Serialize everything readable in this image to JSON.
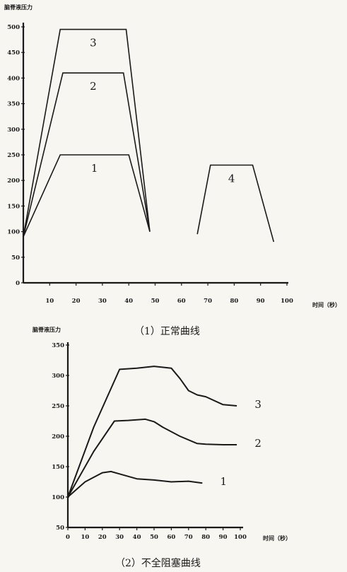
{
  "chart_data": [
    {
      "type": "line",
      "caption": "（1）正常曲线",
      "ylabel": "脑脊液压力",
      "xlabel": "时间（秒）",
      "ylim": [
        0,
        500
      ],
      "xlim": [
        0,
        100
      ],
      "yticks": [
        0,
        50,
        100,
        150,
        200,
        250,
        300,
        350,
        400,
        450,
        500
      ],
      "xticks": [
        10,
        20,
        30,
        40,
        50,
        60,
        70,
        80,
        90,
        100
      ],
      "series": [
        {
          "name": "1",
          "x": [
            0,
            14,
            40,
            48
          ],
          "y": [
            90,
            250,
            250,
            100
          ]
        },
        {
          "name": "2",
          "x": [
            0,
            15,
            38,
            48
          ],
          "y": [
            90,
            410,
            410,
            100
          ]
        },
        {
          "name": "3",
          "x": [
            0,
            14,
            39,
            48
          ],
          "y": [
            90,
            495,
            495,
            100
          ]
        },
        {
          "name": "4",
          "x": [
            66,
            71,
            87,
            95
          ],
          "y": [
            95,
            230,
            230,
            80
          ]
        }
      ]
    },
    {
      "type": "line",
      "caption": "（2）不全阻塞曲线",
      "ylabel": "脑脊液压力",
      "xlabel": "时间（秒）",
      "ylim": [
        50,
        350
      ],
      "xlim": [
        0,
        100
      ],
      "yticks": [
        50,
        100,
        150,
        200,
        250,
        300,
        350
      ],
      "xticks": [
        0,
        10,
        20,
        30,
        40,
        50,
        60,
        70,
        80,
        90,
        100
      ],
      "series": [
        {
          "name": "1",
          "x": [
            0,
            10,
            20,
            25,
            30,
            40,
            50,
            60,
            70,
            78
          ],
          "y": [
            100,
            125,
            140,
            142,
            138,
            130,
            128,
            125,
            126,
            123
          ]
        },
        {
          "name": "2",
          "x": [
            0,
            15,
            27,
            35,
            45,
            50,
            55,
            65,
            75,
            80,
            90,
            98
          ],
          "y": [
            100,
            175,
            225,
            226,
            228,
            224,
            215,
            200,
            188,
            187,
            186,
            186
          ]
        },
        {
          "name": "3",
          "x": [
            0,
            15,
            30,
            40,
            50,
            60,
            65,
            70,
            75,
            80,
            90,
            98
          ],
          "y": [
            100,
            215,
            310,
            312,
            315,
            312,
            295,
            275,
            268,
            265,
            252,
            250
          ]
        }
      ]
    }
  ]
}
